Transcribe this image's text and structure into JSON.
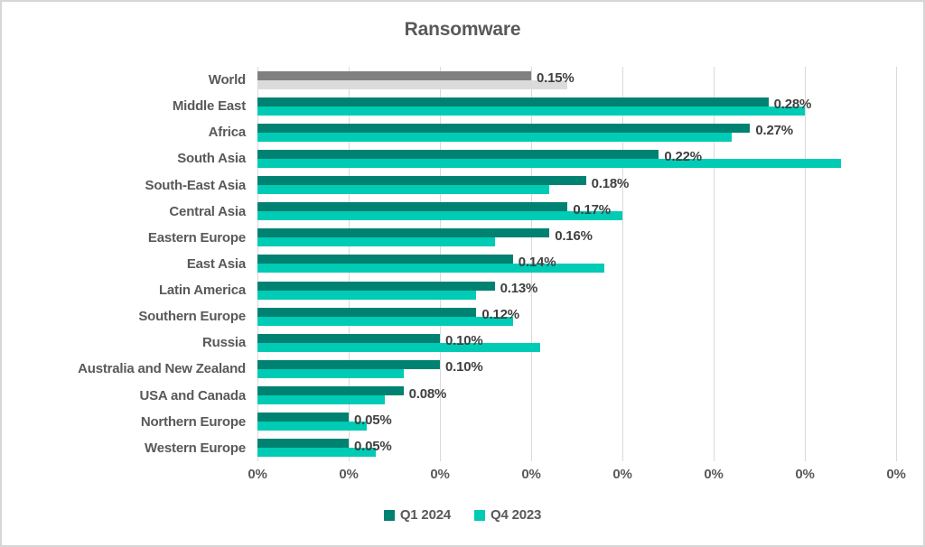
{
  "chart_data": {
    "type": "bar",
    "orientation": "horizontal",
    "title": "Ransomware",
    "categories": [
      "World",
      "Middle East",
      "Africa",
      "South Asia",
      "South-East Asia",
      "Central Asia",
      "Eastern Europe",
      "East Asia",
      "Latin America",
      "Southern Europe",
      "Russia",
      "Australia and New Zealand",
      "USA and Canada",
      "Northern Europe",
      "Western Europe"
    ],
    "series": [
      {
        "name": "Q1 2024",
        "color": "#008272",
        "values": [
          0.15,
          0.28,
          0.27,
          0.22,
          0.18,
          0.17,
          0.16,
          0.14,
          0.13,
          0.12,
          0.1,
          0.1,
          0.08,
          0.05,
          0.05
        ],
        "data_labels": [
          "0.15%",
          "0.28%",
          "0.27%",
          "0.22%",
          "0.18%",
          "0.17%",
          "0.16%",
          "0.14%",
          "0.13%",
          "0.12%",
          "0.10%",
          "0.10%",
          "0.08%",
          "0.05%",
          "0.05%"
        ]
      },
      {
        "name": "Q4 2023",
        "color": "#00CBB4",
        "values": [
          0.17,
          0.3,
          0.26,
          0.32,
          0.16,
          0.2,
          0.13,
          0.19,
          0.12,
          0.14,
          0.155,
          0.08,
          0.07,
          0.06,
          0.065
        ]
      }
    ],
    "highlight_category": "World",
    "highlight_colors": {
      "q1": "#808080",
      "q4": "#DBDBDB"
    },
    "x_tick_labels": [
      "0%",
      "0%",
      "0%",
      "0%",
      "0%",
      "0%",
      "0%",
      "0%"
    ],
    "xlim": [
      0,
      0.35
    ],
    "grid": "vertical",
    "gridline_color": "#d9d9d9",
    "legend_position": "bottom"
  }
}
